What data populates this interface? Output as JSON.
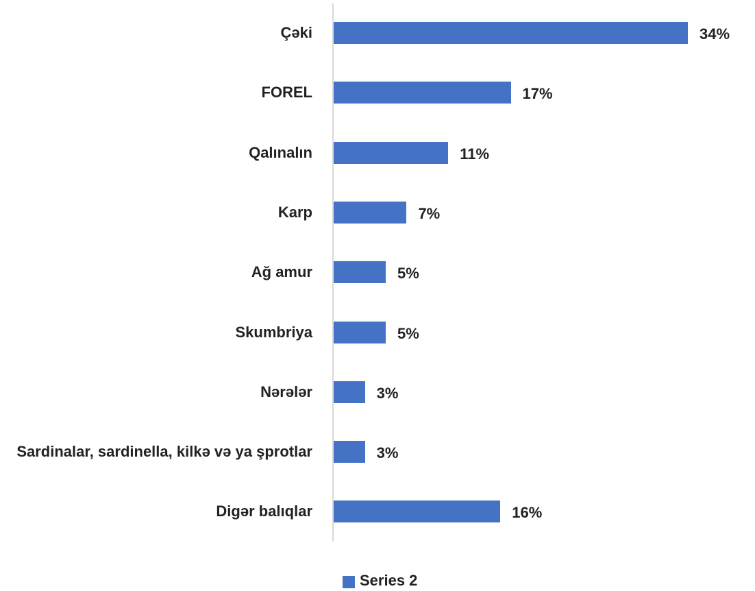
{
  "chart_data": {
    "type": "bar",
    "orientation": "horizontal",
    "categories": [
      "Çəki",
      "FOREL",
      "Qalınalın",
      "Karp",
      "Ağ amur",
      "Skumbriya",
      "Nərələr",
      "Sardinalar, sardinella, kilkə və ya şprotlar",
      "Digər balıqlar"
    ],
    "series": [
      {
        "name": "Series 2",
        "color": "#4472c4",
        "values": [
          34,
          17,
          11,
          7,
          5,
          5,
          3,
          3,
          16
        ],
        "value_labels": [
          "34%",
          "17%",
          "11%",
          "7%",
          "5%",
          "5%",
          "3%",
          "3%",
          "16%"
        ]
      }
    ],
    "xlim": [
      0,
      34
    ],
    "legend": "bottom"
  }
}
